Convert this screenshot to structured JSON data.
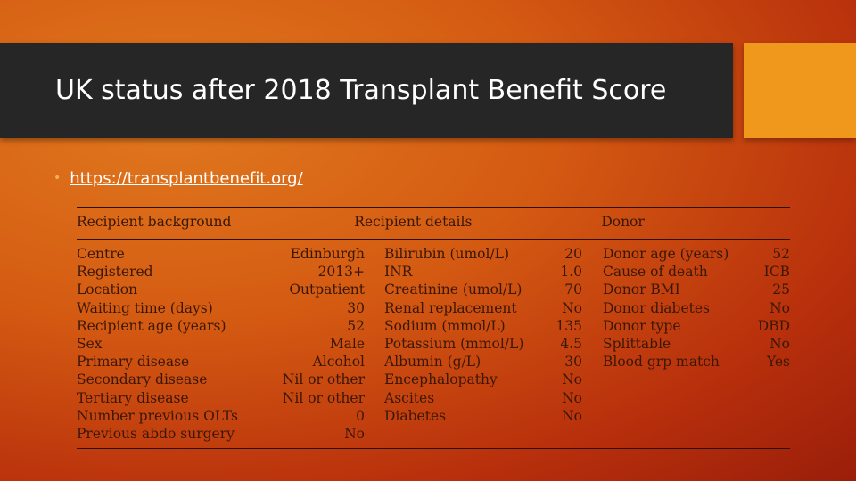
{
  "slide": {
    "title": "UK status after 2018 Transplant Benefit Score",
    "bullet_link": "https://transplantbenefit.org/"
  },
  "table": {
    "headers": {
      "recipient_background": "Recipient background",
      "recipient_details": "Recipient details",
      "donor": "Donor"
    },
    "rows": [
      {
        "bg_label": "Centre",
        "bg_value": "Edinburgh",
        "rd_label": "Bilirubin (umol/L)",
        "rd_value": "20",
        "d_label": "Donor age (years)",
        "d_value": "52"
      },
      {
        "bg_label": "Registered",
        "bg_value": "2013+",
        "rd_label": "INR",
        "rd_value": "1.0",
        "d_label": "Cause of death",
        "d_value": "ICB"
      },
      {
        "bg_label": "Location",
        "bg_value": "Outpatient",
        "rd_label": "Creatinine (umol/L)",
        "rd_value": "70",
        "d_label": "Donor BMI",
        "d_value": "25"
      },
      {
        "bg_label": "Waiting time (days)",
        "bg_value": "30",
        "rd_label": "Renal replacement",
        "rd_value": "No",
        "d_label": "Donor diabetes",
        "d_value": "No"
      },
      {
        "bg_label": "Recipient age (years)",
        "bg_value": "52",
        "rd_label": "Sodium (mmol/L)",
        "rd_value": "135",
        "d_label": "Donor type",
        "d_value": "DBD"
      },
      {
        "bg_label": "Sex",
        "bg_value": "Male",
        "rd_label": "Potassium (mmol/L)",
        "rd_value": "4.5",
        "d_label": "Splittable",
        "d_value": "No"
      },
      {
        "bg_label": "Primary disease",
        "bg_value": "Alcohol",
        "rd_label": "Albumin (g/L)",
        "rd_value": "30",
        "d_label": "Blood grp match",
        "d_value": "Yes"
      },
      {
        "bg_label": "Secondary disease",
        "bg_value": "Nil or other",
        "rd_label": "Encephalopathy",
        "rd_value": "No",
        "d_label": "",
        "d_value": ""
      },
      {
        "bg_label": "Tertiary disease",
        "bg_value": "Nil or other",
        "rd_label": "Ascites",
        "rd_value": "No",
        "d_label": "",
        "d_value": ""
      },
      {
        "bg_label": "Number previous OLTs",
        "bg_value": "0",
        "rd_label": "Diabetes",
        "rd_value": "No",
        "d_label": "",
        "d_value": ""
      },
      {
        "bg_label": "Previous abdo surgery",
        "bg_value": "No",
        "rd_label": "",
        "rd_value": "",
        "d_label": "",
        "d_value": ""
      }
    ]
  }
}
